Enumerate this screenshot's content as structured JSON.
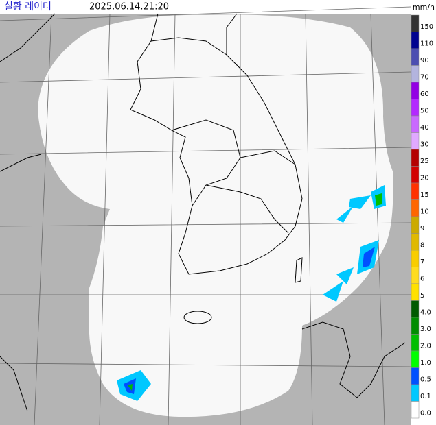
{
  "header": {
    "title": "실황 레이더",
    "timestamp": "2025.06.14.21:20"
  },
  "legend": {
    "unit": "mm/h",
    "items": [
      {
        "label": "150",
        "color": "#333333"
      },
      {
        "label": "110",
        "color": "#000390"
      },
      {
        "label": "90",
        "color": "#4c4eb1"
      },
      {
        "label": "70",
        "color": "#b3b4de"
      },
      {
        "label": "60",
        "color": "#9300e4"
      },
      {
        "label": "50",
        "color": "#b329ff"
      },
      {
        "label": "40",
        "color": "#c969ff"
      },
      {
        "label": "30",
        "color": "#e0a9ff"
      },
      {
        "label": "25",
        "color": "#b40000"
      },
      {
        "label": "20",
        "color": "#d20000"
      },
      {
        "label": "15",
        "color": "#ff3200"
      },
      {
        "label": "10",
        "color": "#ff6600"
      },
      {
        "label": "9",
        "color": "#ccaa00"
      },
      {
        "label": "8",
        "color": "#e0b900"
      },
      {
        "label": "7",
        "color": "#f9cd00"
      },
      {
        "label": "6",
        "color": "#ffdc1f"
      },
      {
        "label": "5",
        "color": "#ffe100"
      },
      {
        "label": "4.0",
        "color": "#005a00"
      },
      {
        "label": "3.0",
        "color": "#008c00"
      },
      {
        "label": "2.0",
        "color": "#00be00"
      },
      {
        "label": "1.0",
        "color": "#00ff00"
      },
      {
        "label": "0.5",
        "color": "#0050ff"
      },
      {
        "label": "0.1",
        "color": "#00c8ff"
      },
      {
        "label": "0.0",
        "color": "#ffffff"
      }
    ]
  }
}
